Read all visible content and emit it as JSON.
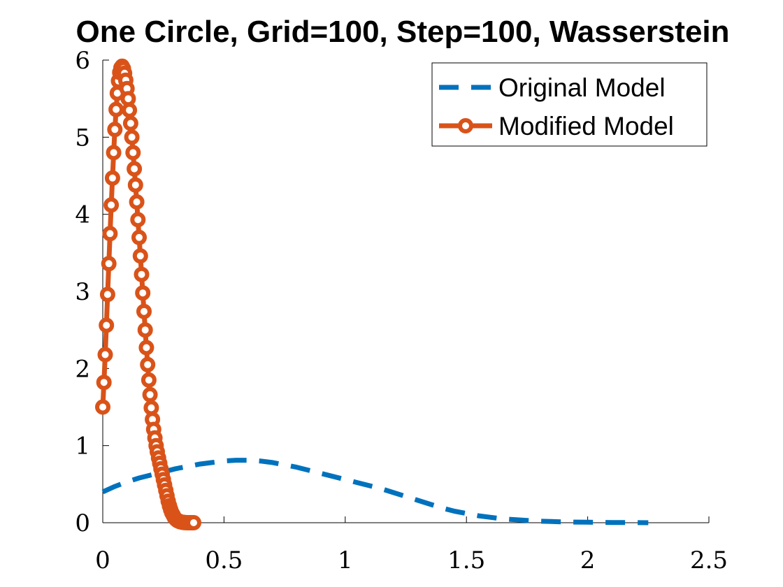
{
  "chart_data": {
    "type": "line",
    "title": "One Circle, Grid=100, Step=100, Wasserstein",
    "xlabel": "",
    "ylabel": "",
    "xlim": [
      0,
      2.5
    ],
    "ylim": [
      0,
      6
    ],
    "x_ticks": [
      "0",
      "0.5",
      "1",
      "1.5",
      "2",
      "2.5"
    ],
    "y_ticks": [
      "0",
      "1",
      "2",
      "3",
      "4",
      "5",
      "6"
    ],
    "grid": false,
    "legend_position": "top-right",
    "series": [
      {
        "name": "Original Model",
        "color": "#0072BD",
        "line_style": "dashed",
        "marker": "none",
        "x": [
          0,
          0.05,
          0.1,
          0.15,
          0.2,
          0.25,
          0.3,
          0.35,
          0.4,
          0.45,
          0.5,
          0.55,
          0.6,
          0.65,
          0.7,
          0.75,
          0.8,
          0.85,
          0.9,
          0.95,
          1.0,
          1.05,
          1.1,
          1.15,
          1.2,
          1.25,
          1.3,
          1.35,
          1.4,
          1.45,
          1.5,
          1.55,
          1.6,
          1.65,
          1.7,
          1.75,
          1.8,
          1.85,
          1.9,
          1.95,
          2.0,
          2.05,
          2.1,
          2.15,
          2.2,
          2.25
        ],
        "y": [
          0.4,
          0.47,
          0.53,
          0.58,
          0.62,
          0.66,
          0.7,
          0.73,
          0.76,
          0.78,
          0.8,
          0.81,
          0.81,
          0.8,
          0.78,
          0.75,
          0.72,
          0.68,
          0.64,
          0.6,
          0.56,
          0.52,
          0.48,
          0.44,
          0.39,
          0.34,
          0.29,
          0.24,
          0.19,
          0.15,
          0.12,
          0.09,
          0.07,
          0.05,
          0.04,
          0.03,
          0.02,
          0.015,
          0.01,
          0.008,
          0.006,
          0.004,
          0.003,
          0.002,
          0.001,
          0.0
        ]
      },
      {
        "name": "Modified Model",
        "color": "#D95319",
        "line_style": "solid",
        "marker": "open-circle",
        "x": [
          0.0,
          0.005,
          0.01,
          0.015,
          0.02,
          0.025,
          0.03,
          0.035,
          0.04,
          0.045,
          0.05,
          0.055,
          0.06,
          0.065,
          0.07,
          0.075,
          0.08,
          0.085,
          0.09,
          0.095,
          0.1,
          0.105,
          0.11,
          0.115,
          0.12,
          0.125,
          0.13,
          0.135,
          0.14,
          0.145,
          0.15,
          0.155,
          0.16,
          0.165,
          0.17,
          0.175,
          0.18,
          0.185,
          0.19,
          0.195,
          0.2,
          0.205,
          0.21,
          0.215,
          0.22,
          0.225,
          0.23,
          0.235,
          0.24,
          0.245,
          0.25,
          0.255,
          0.26,
          0.265,
          0.27,
          0.275,
          0.28,
          0.285,
          0.29,
          0.295,
          0.3,
          0.305,
          0.31,
          0.315,
          0.32,
          0.325,
          0.33,
          0.335,
          0.34,
          0.345,
          0.35,
          0.355,
          0.36,
          0.365,
          0.37,
          0.375
        ],
        "y": [
          1.5,
          1.82,
          2.18,
          2.56,
          2.96,
          3.36,
          3.75,
          4.12,
          4.47,
          4.8,
          5.1,
          5.36,
          5.57,
          5.73,
          5.84,
          5.9,
          5.92,
          5.89,
          5.83,
          5.74,
          5.63,
          5.5,
          5.35,
          5.18,
          5.0,
          4.8,
          4.59,
          4.38,
          4.16,
          3.93,
          3.7,
          3.46,
          3.22,
          2.98,
          2.74,
          2.5,
          2.27,
          2.05,
          1.85,
          1.66,
          1.49,
          1.34,
          1.21,
          1.1,
          1.0,
          0.92,
          0.84,
          0.77,
          0.7,
          0.63,
          0.56,
          0.49,
          0.42,
          0.35,
          0.28,
          0.22,
          0.17,
          0.13,
          0.1,
          0.07,
          0.05,
          0.035,
          0.025,
          0.018,
          0.012,
          0.008,
          0.005,
          0.003,
          0.002,
          0.001,
          0.0,
          0.0,
          0.0,
          0.0,
          0.0,
          0.0
        ]
      }
    ]
  }
}
